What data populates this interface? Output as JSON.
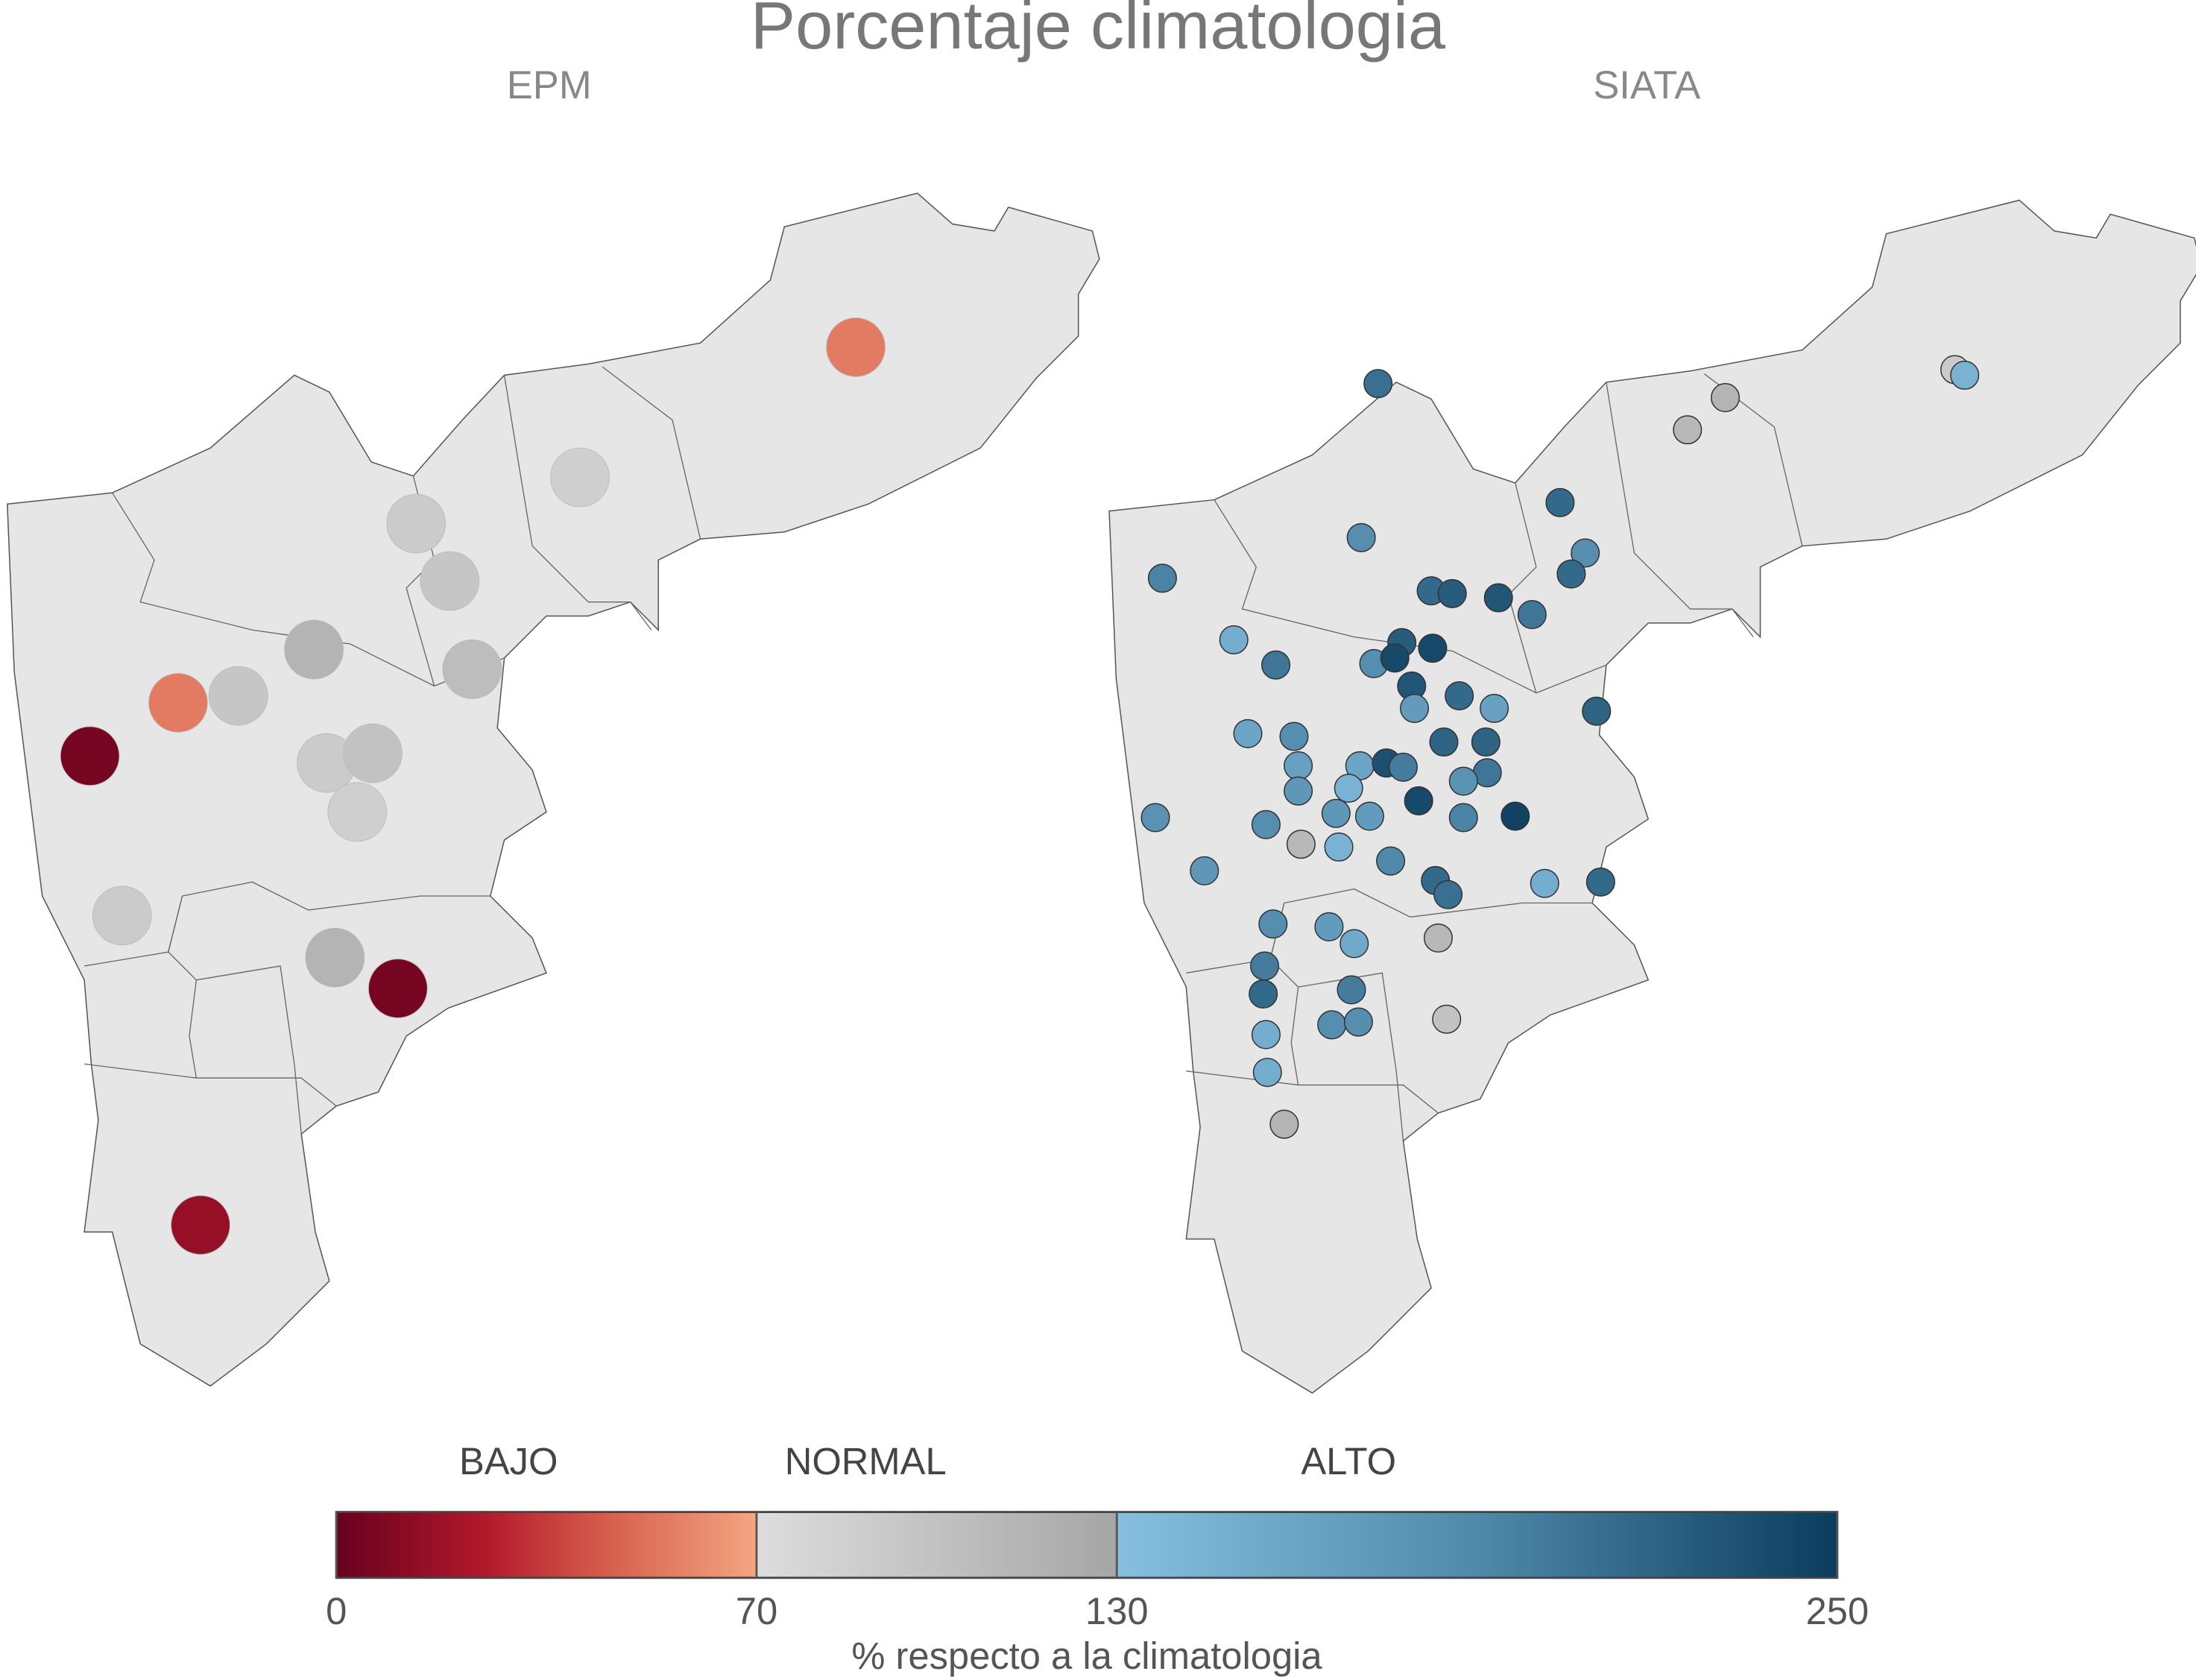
{
  "title": "Porcentaje climatologia",
  "panels": [
    {
      "title": "EPM",
      "values": [
        55,
        85,
        90,
        95,
        115,
        105,
        95,
        55,
        5,
        90,
        100,
        85,
        90,
        115,
        5,
        15
      ]
    },
    {
      "title": "SIATA",
      "values": [
        210,
        90,
        145,
        115,
        110,
        215,
        185,
        185,
        215,
        195,
        215,
        225,
        230,
        205,
        150,
        225,
        240,
        205,
        185,
        240,
        230,
        215,
        165,
        170,
        220,
        160,
        185,
        220,
        220,
        165,
        160,
        235,
        200,
        205,
        180,
        145,
        175,
        240,
        175,
        170,
        195,
        245,
        180,
        185,
        110,
        145,
        190,
        175,
        215,
        210,
        150,
        215,
        185,
        170,
        110,
        155,
        200,
        200,
        215,
        185,
        185,
        100,
        150,
        150,
        115
      ]
    }
  ],
  "colorbar": {
    "classes": [
      "BAJO",
      "NORMAL",
      "ALTO"
    ],
    "lim": [
      0,
      250
    ],
    "ticks": [
      0,
      70,
      130,
      250
    ],
    "label": "% respecto a la climatologia"
  }
}
